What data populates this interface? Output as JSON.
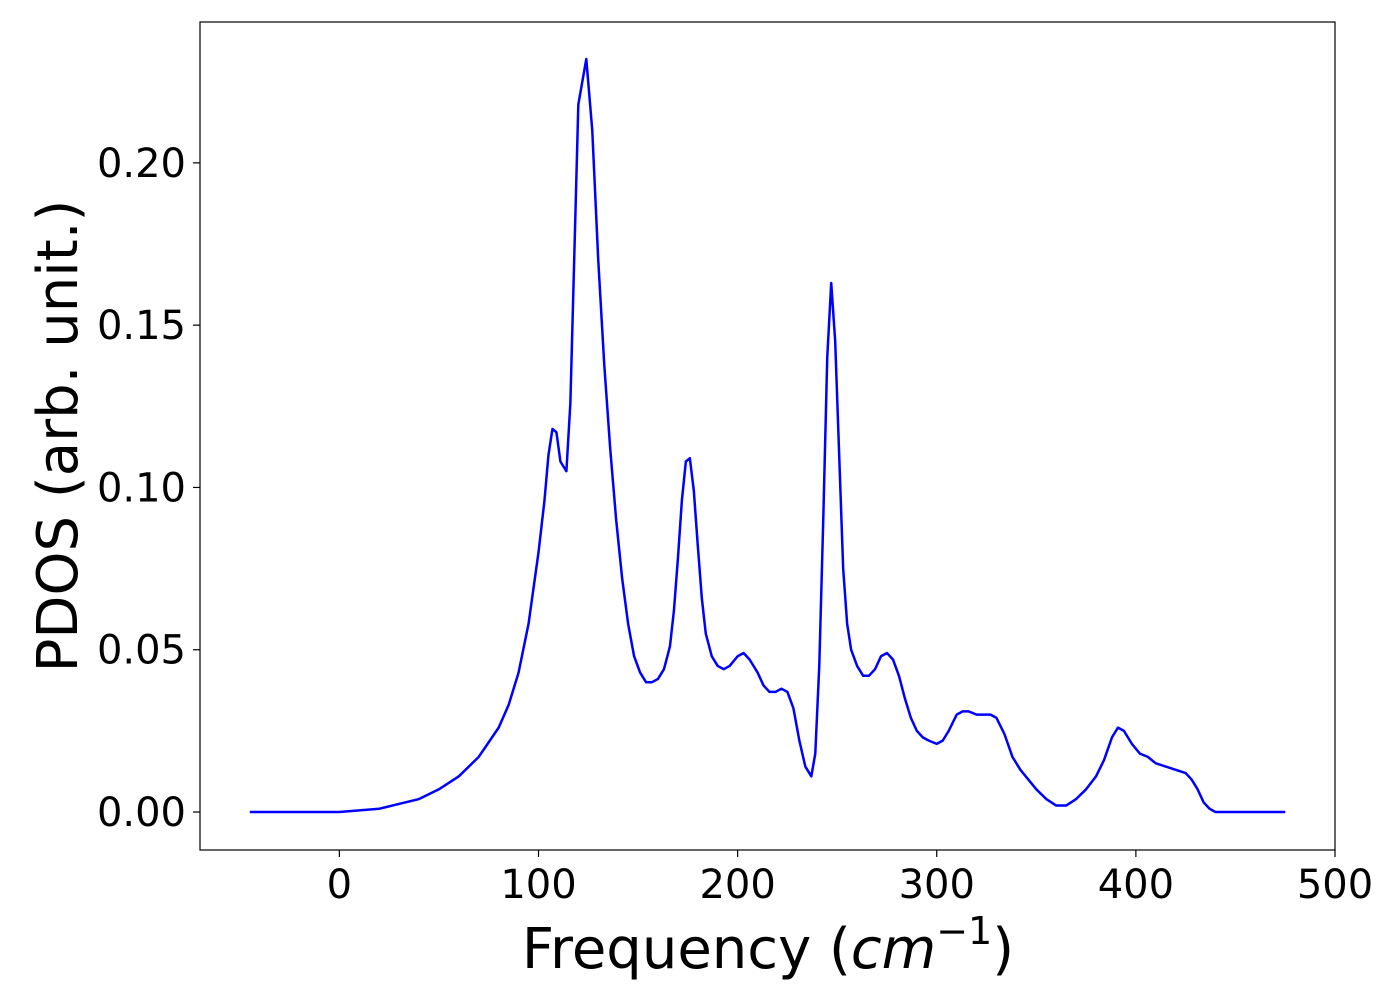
{
  "chart_data": {
    "type": "line",
    "xlabel": [
      "Frequency (",
      "cm",
      "−1",
      ")"
    ],
    "ylabel": "PDOS (arb. unit.)",
    "xlim": [
      -70,
      500
    ],
    "xticks": [
      0,
      100,
      200,
      300,
      400,
      500
    ],
    "ylim": [
      -0.0117,
      0.2434
    ],
    "yticks": [
      {
        "value": 0,
        "label": "0.00"
      },
      {
        "value": 0.05,
        "label": "0.05"
      },
      {
        "value": 0.1,
        "label": "0.10"
      },
      {
        "value": 0.15,
        "label": "0.15"
      },
      {
        "value": 0.2,
        "label": "0.20"
      }
    ],
    "series": [
      {
        "color": "#0000ff",
        "x": [
          -45,
          0,
          20,
          40,
          50,
          60,
          70,
          80,
          85,
          90,
          95,
          100,
          103,
          105,
          107,
          109,
          111,
          114,
          116,
          120,
          124,
          127,
          130,
          133,
          136,
          139,
          142,
          145,
          148,
          151,
          154,
          157,
          160,
          163,
          166,
          168,
          170,
          172,
          174,
          176,
          178,
          180,
          182,
          184,
          187,
          190,
          193,
          196,
          200,
          203,
          206,
          210,
          213,
          216,
          219,
          222,
          225,
          228,
          231,
          234,
          237,
          239,
          241,
          243,
          245,
          247,
          249,
          251,
          253,
          255,
          257,
          260,
          263,
          266,
          269,
          272,
          275,
          278,
          281,
          284,
          287,
          290,
          293,
          296,
          300,
          303,
          306,
          310,
          313,
          316,
          320,
          324,
          327,
          330,
          334,
          338,
          342,
          346,
          350,
          355,
          360,
          365,
          370,
          375,
          380,
          384,
          388,
          391,
          394,
          398,
          402,
          406,
          410,
          415,
          420,
          425,
          428,
          431,
          434,
          437,
          440,
          445,
          475
        ],
        "values": [
          0,
          0,
          0.001,
          0.004,
          0.007,
          0.011,
          0.017,
          0.026,
          0.033,
          0.043,
          0.058,
          0.08,
          0.096,
          0.11,
          0.118,
          0.117,
          0.108,
          0.105,
          0.126,
          0.218,
          0.232,
          0.21,
          0.17,
          0.138,
          0.112,
          0.09,
          0.072,
          0.058,
          0.048,
          0.043,
          0.04,
          0.04,
          0.041,
          0.044,
          0.051,
          0.062,
          0.078,
          0.096,
          0.108,
          0.109,
          0.099,
          0.082,
          0.066,
          0.055,
          0.048,
          0.045,
          0.044,
          0.045,
          0.048,
          0.049,
          0.047,
          0.043,
          0.039,
          0.037,
          0.037,
          0.038,
          0.037,
          0.032,
          0.022,
          0.014,
          0.011,
          0.018,
          0.045,
          0.09,
          0.14,
          0.163,
          0.145,
          0.11,
          0.075,
          0.058,
          0.05,
          0.045,
          0.042,
          0.042,
          0.044,
          0.048,
          0.049,
          0.047,
          0.042,
          0.035,
          0.029,
          0.025,
          0.023,
          0.022,
          0.021,
          0.022,
          0.025,
          0.03,
          0.031,
          0.031,
          0.03,
          0.03,
          0.03,
          0.029,
          0.024,
          0.017,
          0.013,
          0.01,
          0.007,
          0.004,
          0.002,
          0.002,
          0.004,
          0.007,
          0.011,
          0.016,
          0.023,
          0.026,
          0.025,
          0.021,
          0.018,
          0.017,
          0.015,
          0.014,
          0.013,
          0.012,
          0.01,
          0.007,
          0.003,
          0.001,
          0,
          0,
          0
        ]
      }
    ]
  }
}
